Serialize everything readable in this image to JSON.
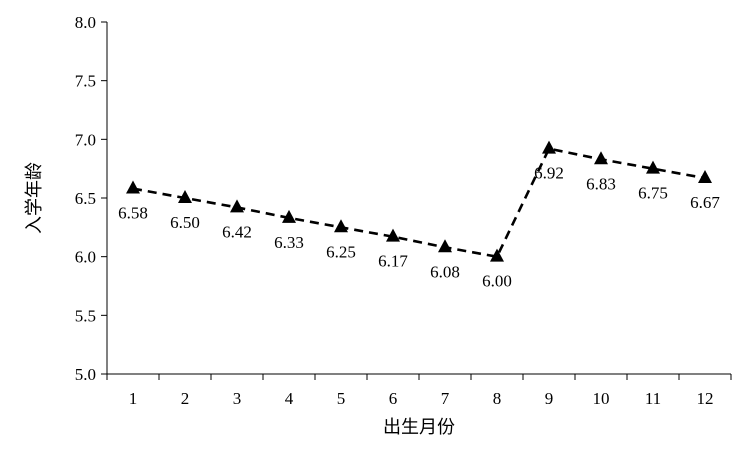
{
  "chart_data": {
    "type": "line",
    "title": "",
    "xlabel": "出生月份",
    "ylabel": "入学年龄",
    "categories": [
      "1",
      "2",
      "3",
      "4",
      "5",
      "6",
      "7",
      "8",
      "9",
      "10",
      "11",
      "12"
    ],
    "series": [
      {
        "values": [
          6.58,
          6.5,
          6.42,
          6.33,
          6.25,
          6.17,
          6.08,
          6.0,
          6.92,
          6.83,
          6.75,
          6.67
        ],
        "labels": [
          "6.58",
          "6.50",
          "6.42",
          "6.33",
          "6.25",
          "6.17",
          "6.08",
          "6.00",
          "6.92",
          "6.83",
          "6.75",
          "6.67"
        ],
        "line_style": "dashed",
        "marker": "triangle",
        "color": "#000000"
      }
    ],
    "ylim": [
      5.0,
      8.0
    ],
    "yticks": [
      "5.0",
      "5.5",
      "6.0",
      "6.5",
      "7.0",
      "7.5",
      "8.0"
    ],
    "grid": false,
    "legend": "none"
  }
}
